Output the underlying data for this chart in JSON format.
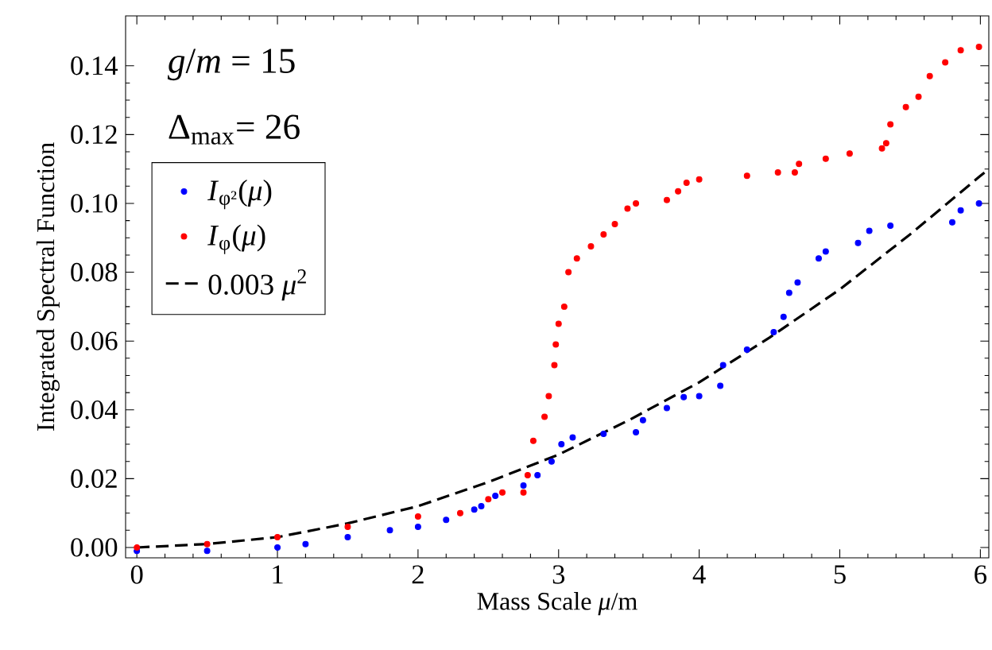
{
  "chart_data": {
    "type": "scatter",
    "xlabel": "Mass Scale *μ*/m",
    "ylabel": "Integrated Spectral Function",
    "annotations": [
      "*g*/*m* = 15",
      "Δ$_{max}$= 26"
    ],
    "xlim": [
      -0.08,
      6.06
    ],
    "ylim": [
      -0.003,
      0.1545
    ],
    "xticks": [
      0,
      1,
      2,
      3,
      4,
      5,
      6
    ],
    "yticks": [
      {
        "value": 0,
        "label": "0.00"
      },
      {
        "value": 0.02,
        "label": "0.02"
      },
      {
        "value": 0.04,
        "label": "0.04"
      },
      {
        "value": 0.06,
        "label": "0.06"
      },
      {
        "value": 0.08,
        "label": "0.08"
      },
      {
        "value": 0.1,
        "label": "0.10"
      },
      {
        "value": 0.12,
        "label": "0.12"
      },
      {
        "value": 0.14,
        "label": "0.14"
      }
    ],
    "legend": "left",
    "grid": false,
    "series": [
      {
        "name": "*I*$_{φ²}$(*μ*)",
        "color": "#0000ff",
        "marker": "circle",
        "x": [
          0,
          0.5,
          1.0,
          1.2,
          1.5,
          1.8,
          2.0,
          2.2,
          2.4,
          2.45,
          2.55,
          2.75,
          2.85,
          2.95,
          3.02,
          3.1,
          3.32,
          3.55,
          3.6,
          3.77,
          3.89,
          4.0,
          4.15,
          4.17,
          4.34,
          4.53,
          4.6,
          4.64,
          4.7,
          4.85,
          4.9,
          5.13,
          5.21,
          5.36,
          5.8,
          5.86,
          5.99
        ],
        "values": [
          -0.001,
          -0.001,
          0.0,
          0.001,
          0.003,
          0.005,
          0.006,
          0.008,
          0.011,
          0.012,
          0.015,
          0.018,
          0.021,
          0.025,
          0.03,
          0.032,
          0.033,
          0.0335,
          0.037,
          0.0405,
          0.0437,
          0.044,
          0.047,
          0.053,
          0.0575,
          0.0626,
          0.067,
          0.074,
          0.077,
          0.084,
          0.086,
          0.0885,
          0.092,
          0.0935,
          0.0945,
          0.098,
          0.1
        ]
      },
      {
        "name": "*I*$_{φ}$(*μ*)",
        "color": "#ff0000",
        "marker": "circle",
        "x": [
          0,
          0.5,
          1.0,
          1.5,
          2.0,
          2.3,
          2.5,
          2.6,
          2.75,
          2.78,
          2.82,
          2.9,
          2.93,
          2.97,
          2.98,
          3.0,
          3.04,
          3.07,
          3.13,
          3.23,
          3.32,
          3.4,
          3.49,
          3.55,
          3.77,
          3.85,
          3.91,
          4.0,
          4.34,
          4.56,
          4.68,
          4.71,
          4.9,
          5.07,
          5.3,
          5.33,
          5.36,
          5.47,
          5.56,
          5.64,
          5.75,
          5.86,
          5.99
        ],
        "values": [
          0.0,
          0.001,
          0.003,
          0.006,
          0.009,
          0.01,
          0.014,
          0.016,
          0.016,
          0.021,
          0.031,
          0.038,
          0.044,
          0.053,
          0.059,
          0.065,
          0.07,
          0.08,
          0.084,
          0.0875,
          0.091,
          0.094,
          0.0985,
          0.1,
          0.101,
          0.1035,
          0.106,
          0.107,
          0.108,
          0.109,
          0.109,
          0.1115,
          0.113,
          0.1145,
          0.116,
          0.1175,
          0.123,
          0.128,
          0.131,
          0.137,
          0.141,
          0.1445,
          0.1455
        ]
      },
      {
        "name": "0.003 *μ*$^{2}$",
        "color": "#000000",
        "type": "line",
        "marker": "none",
        "line_style": "dashed",
        "x": [
          0,
          0.5,
          1.0,
          1.5,
          2.0,
          2.5,
          3.0,
          3.5,
          4.0,
          4.5,
          5.0,
          5.5,
          6.0,
          6.06
        ],
        "values": [
          0,
          0.001,
          0.003,
          0.007,
          0.012,
          0.019,
          0.027,
          0.037,
          0.048,
          0.061,
          0.075,
          0.091,
          0.108,
          0.11
        ]
      }
    ]
  }
}
